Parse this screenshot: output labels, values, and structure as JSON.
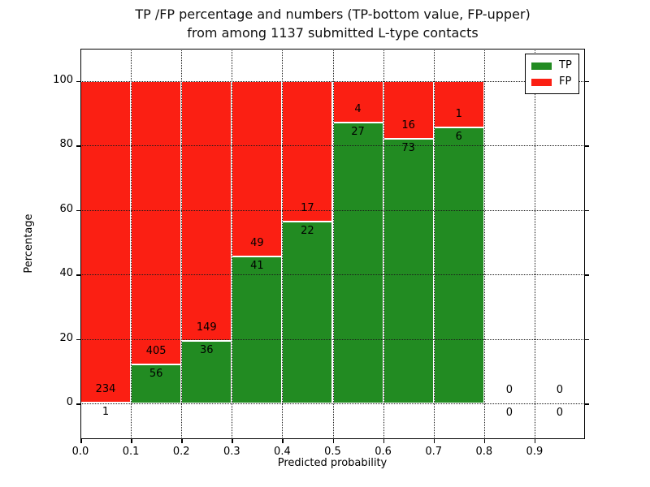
{
  "chart_data": {
    "type": "bar",
    "stacked": true,
    "normalized_to_percent": true,
    "title_line1": "TP /FP percentage and numbers (TP-bottom value, FP-upper)",
    "title_line2": "from among 1137 submitted L-type contacts",
    "xlabel": "Predicted probability",
    "ylabel": "Percentage",
    "total_contacts": 1137,
    "xlim": [
      0.0,
      1.0
    ],
    "ylim": [
      -11,
      110
    ],
    "x_ticks": [
      "0.0",
      "0.1",
      "0.2",
      "0.3",
      "0.4",
      "0.5",
      "0.6",
      "0.7",
      "0.8",
      "0.9"
    ],
    "y_ticks": [
      0,
      20,
      40,
      60,
      80,
      100
    ],
    "grid": true,
    "grid_style": "dotted",
    "colors": {
      "tp": "#228B22",
      "fp": "#FB1F13",
      "bar_edge": "#FFFFFF",
      "grid": "#1A1A1A",
      "text": "#000000"
    },
    "legend": {
      "position": "upper-right",
      "entries": [
        {
          "label": "TP",
          "color_key": "tp"
        },
        {
          "label": "FP",
          "color_key": "fp"
        }
      ]
    },
    "bins": [
      {
        "range": [
          0.0,
          0.1
        ],
        "tp": 1,
        "fp": 234
      },
      {
        "range": [
          0.1,
          0.2
        ],
        "tp": 56,
        "fp": 405
      },
      {
        "range": [
          0.2,
          0.3
        ],
        "tp": 36,
        "fp": 149
      },
      {
        "range": [
          0.3,
          0.4
        ],
        "tp": 41,
        "fp": 49
      },
      {
        "range": [
          0.4,
          0.5
        ],
        "tp": 22,
        "fp": 17
      },
      {
        "range": [
          0.5,
          0.6
        ],
        "tp": 27,
        "fp": 4
      },
      {
        "range": [
          0.6,
          0.7
        ],
        "tp": 73,
        "fp": 16
      },
      {
        "range": [
          0.7,
          0.8
        ],
        "tp": 6,
        "fp": 1
      },
      {
        "range": [
          0.8,
          0.9
        ],
        "tp": 0,
        "fp": 0
      },
      {
        "range": [
          0.9,
          1.0
        ],
        "tp": 0,
        "fp": 0
      }
    ]
  }
}
